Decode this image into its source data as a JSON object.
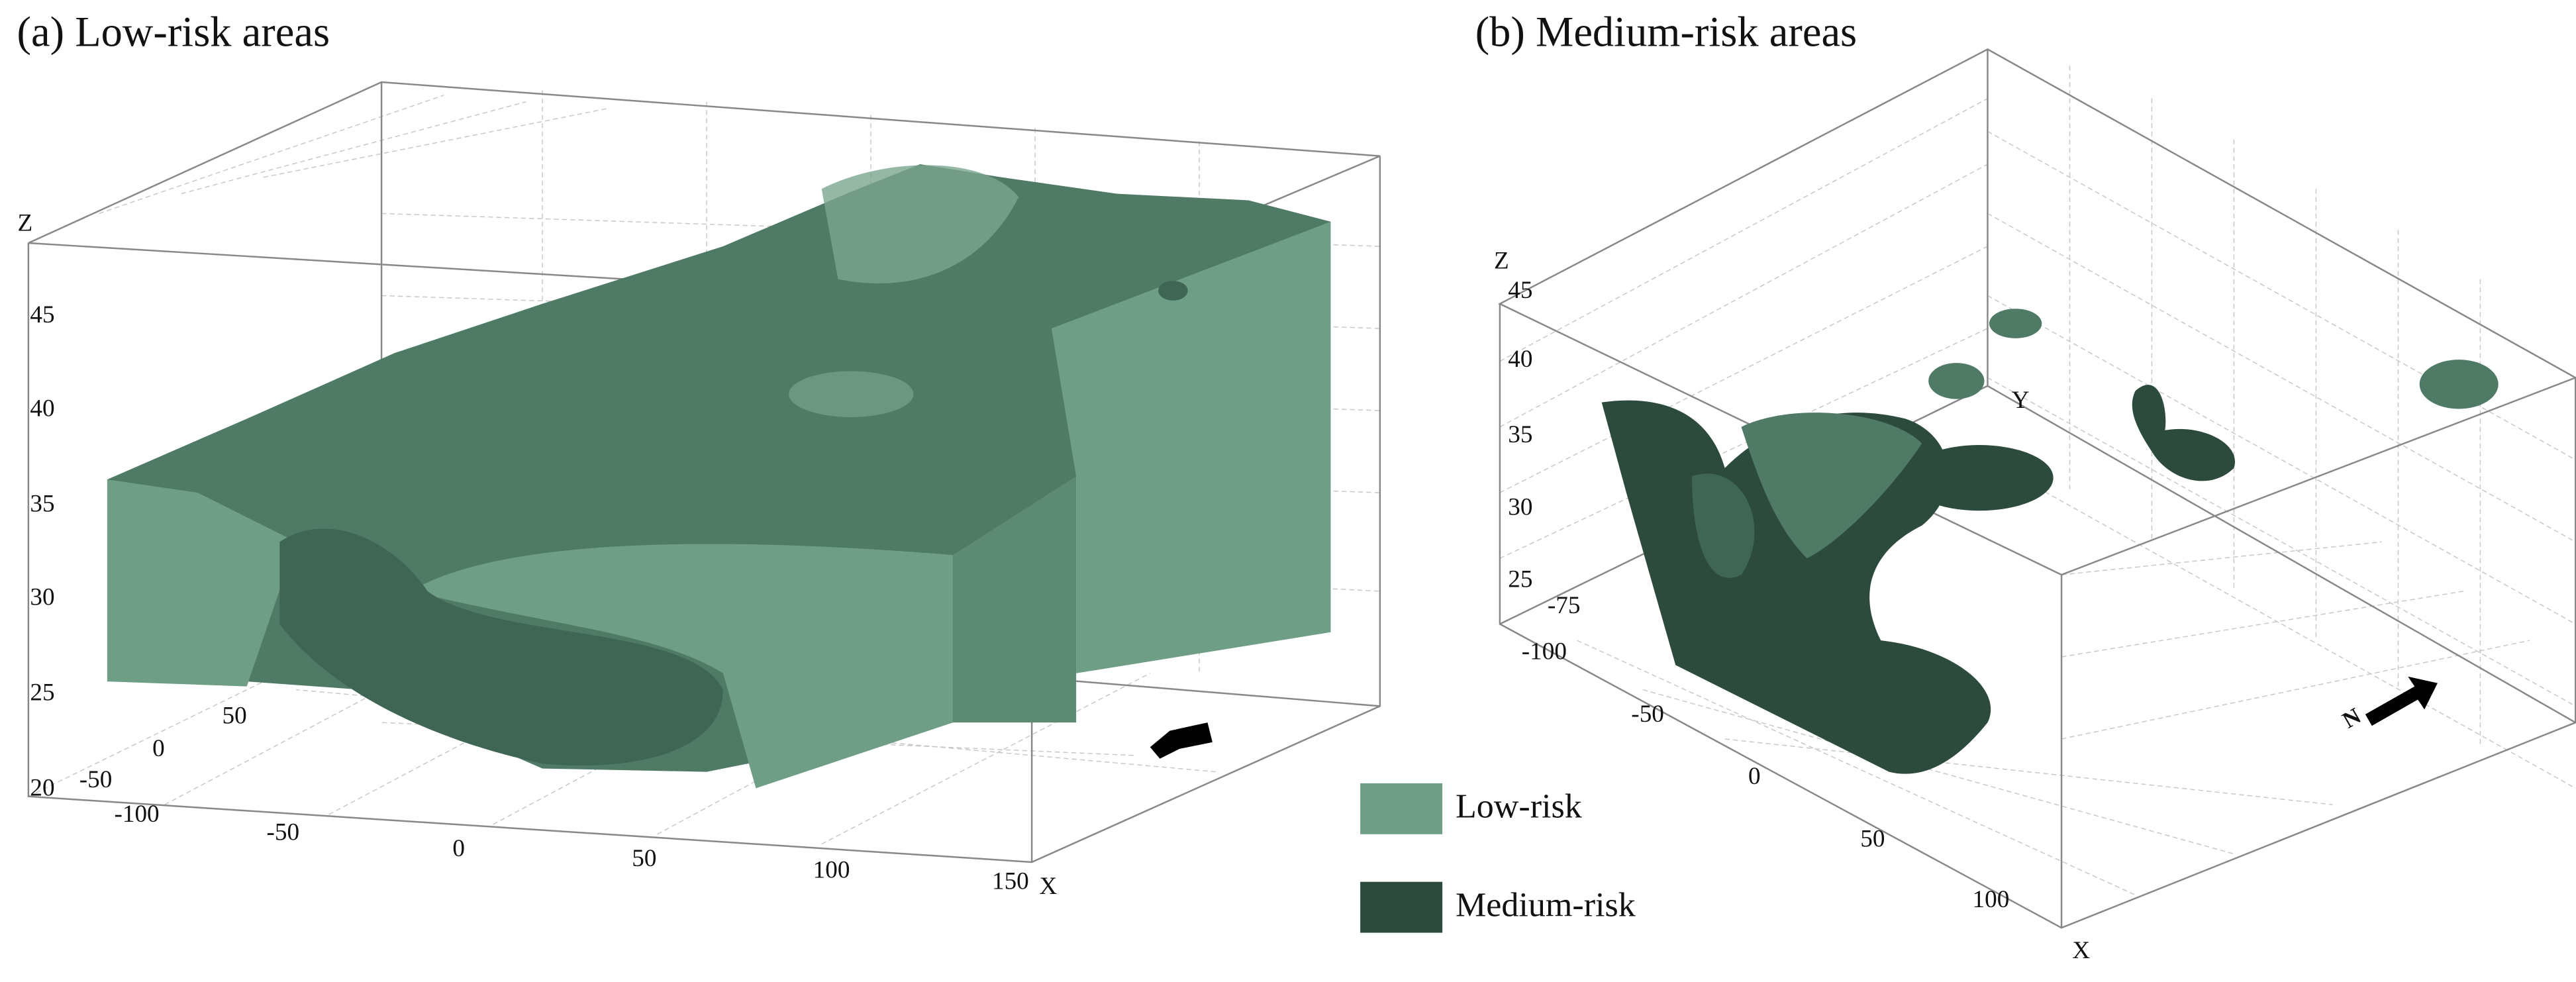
{
  "panels": [
    {
      "title": "(a) Low-risk areas",
      "z_label": "Z",
      "z_ticks": [
        45,
        40,
        35,
        30,
        25,
        20
      ],
      "y_ticks": [
        50,
        0,
        -50
      ],
      "x_label": "X",
      "x_ticks": [
        -100,
        -50,
        0,
        50,
        100,
        150
      ]
    },
    {
      "title": "(b) Medium-risk areas",
      "z_label": "Z",
      "z_ticks": [
        45,
        40,
        35,
        30,
        25
      ],
      "y_label": "Y",
      "y_ticks": [
        -75
      ],
      "x_label": "X",
      "x_ticks": [
        -100,
        -50,
        0,
        50,
        100
      ]
    }
  ],
  "legend": [
    {
      "name": "Low-risk",
      "color": "#6f9e86"
    },
    {
      "name": "Medium-risk",
      "color": "#2d4b3d"
    }
  ]
}
